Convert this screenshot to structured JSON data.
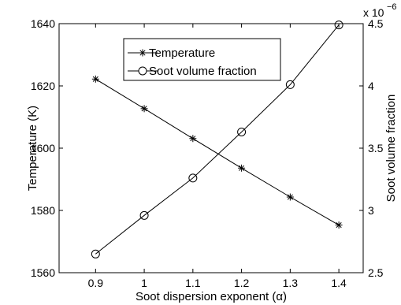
{
  "chart_data": {
    "type": "line",
    "xlabel": "Soot dispersion exponent (α)",
    "ylabel_left": "Temperature (K)",
    "ylabel_right": "Soot volume fraction",
    "right_axis_multiplier": "x 10",
    "right_axis_exponent": "−6",
    "x": [
      0.9,
      1.0,
      1.1,
      1.2,
      1.3,
      1.4
    ],
    "x_ticks": [
      "0.9",
      "1",
      "1.1",
      "1.2",
      "1.3",
      "1.4"
    ],
    "xlim": [
      0.825,
      1.45
    ],
    "y_left_ticks": [
      "1560",
      "1580",
      "1600",
      "1620",
      "1640"
    ],
    "ylim_left": [
      1560,
      1640
    ],
    "y_right_ticks": [
      "2.5",
      "3",
      "3.5",
      "4",
      "4.5"
    ],
    "ylim_right": [
      2.5,
      4.5
    ],
    "grid": false,
    "legend_position": "top-center",
    "series": [
      {
        "name": "Temperature",
        "axis": "left",
        "marker": "asterisk",
        "values": [
          1622.2,
          1612.7,
          1603.1,
          1593.6,
          1584.3,
          1575.3
        ]
      },
      {
        "name": "Soot volume fraction",
        "axis": "right",
        "marker": "circle",
        "values": [
          2.65,
          2.96,
          3.26,
          3.63,
          4.01,
          4.49
        ]
      }
    ]
  }
}
